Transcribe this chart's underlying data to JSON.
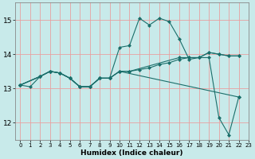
{
  "xlabel": "Humidex (Indice chaleur)",
  "bg_color": "#c8eaea",
  "grid_color": "#e8a0a0",
  "line_color": "#1a6e6a",
  "xlim": [
    -0.5,
    23
  ],
  "ylim": [
    11.5,
    15.5
  ],
  "yticks": [
    12,
    13,
    14,
    15
  ],
  "xticks": [
    0,
    1,
    2,
    3,
    4,
    5,
    6,
    7,
    8,
    9,
    10,
    11,
    12,
    13,
    14,
    15,
    16,
    17,
    18,
    19,
    20,
    21,
    22,
    23
  ],
  "series": [
    {
      "x": [
        0,
        2,
        3,
        4,
        5,
        6,
        7,
        8,
        9,
        10,
        11,
        12,
        13,
        14,
        15,
        16,
        17,
        18,
        19,
        20,
        21,
        22
      ],
      "y": [
        13.1,
        13.35,
        13.5,
        13.45,
        13.3,
        13.05,
        13.05,
        13.3,
        13.3,
        14.2,
        14.25,
        15.05,
        14.85,
        15.05,
        14.95,
        14.45,
        13.85,
        13.9,
        14.05,
        14.0,
        13.95,
        13.95
      ]
    },
    {
      "x": [
        0,
        2,
        3,
        4,
        5,
        6,
        7,
        8,
        9,
        10,
        11,
        12,
        13,
        14,
        15,
        16,
        17,
        18,
        19,
        20,
        21,
        22
      ],
      "y": [
        13.1,
        13.35,
        13.5,
        13.45,
        13.3,
        13.05,
        13.05,
        13.3,
        13.3,
        13.5,
        13.5,
        13.55,
        13.6,
        13.7,
        13.75,
        13.85,
        13.9,
        13.9,
        13.9,
        12.15,
        11.65,
        12.75
      ]
    },
    {
      "x": [
        0,
        2,
        3,
        4,
        5,
        6,
        7,
        8,
        9,
        10,
        11,
        16,
        17,
        18,
        19,
        20,
        21,
        22
      ],
      "y": [
        13.1,
        13.35,
        13.5,
        13.45,
        13.3,
        13.05,
        13.05,
        13.3,
        13.3,
        13.5,
        13.5,
        13.9,
        13.9,
        13.9,
        14.05,
        14.0,
        13.95,
        13.95
      ]
    },
    {
      "x": [
        0,
        1,
        2,
        3,
        4,
        5,
        6,
        7,
        8,
        9,
        10,
        22
      ],
      "y": [
        13.1,
        13.05,
        13.35,
        13.5,
        13.45,
        13.3,
        13.05,
        13.05,
        13.3,
        13.3,
        13.5,
        12.75
      ]
    }
  ]
}
